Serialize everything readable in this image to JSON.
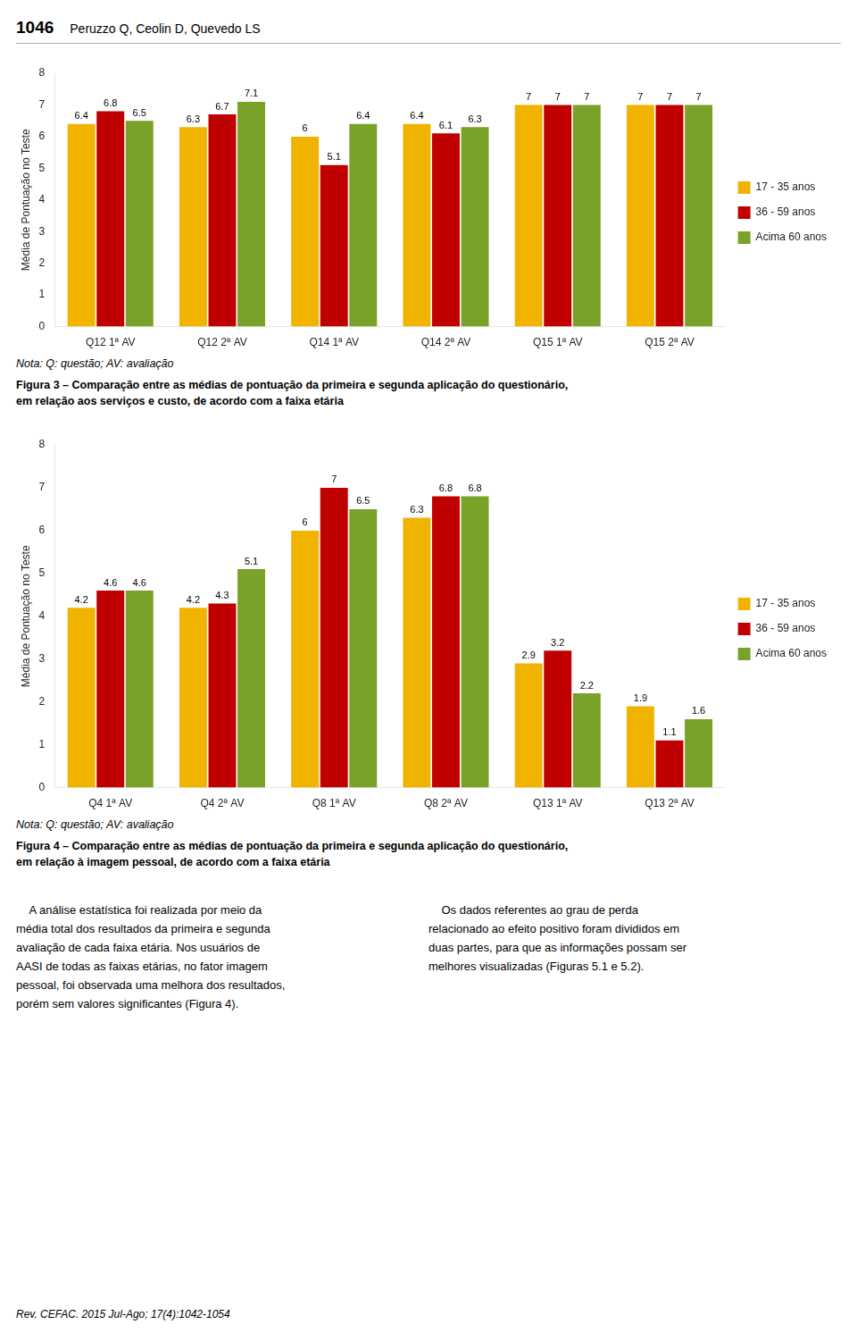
{
  "header": [
    "1046",
    "Peruzzo Q, Ceolin D, Quevedo LS"
  ],
  "chart_data": [
    {
      "type": "bar",
      "categories": [
        "Q12 1ª AV",
        "Q12 2ª AV",
        "Q14 1ª AV",
        "Q14 2ª AV",
        "Q15 1ª AV",
        "Q15 2ª AV"
      ],
      "series": [
        {
          "name": "17 - 35 anos",
          "color": "#F0B400",
          "values": [
            6.4,
            6.3,
            6.0,
            6.4,
            7.0,
            7.0
          ]
        },
        {
          "name": "36 - 59 anos",
          "color": "#C00000",
          "values": [
            6.8,
            6.7,
            5.1,
            6.1,
            7.0,
            7.0
          ]
        },
        {
          "name": "Acima 60 anos",
          "color": "#78A228",
          "values": [
            6.5,
            7.1,
            6.4,
            6.3,
            7.0,
            7.0
          ]
        }
      ],
      "ylabel": "Média de Pontuação no Teste",
      "ylim": [
        0,
        8
      ],
      "yticks": [
        0,
        1,
        2,
        3,
        4,
        5,
        6,
        7,
        8
      ],
      "grid": false,
      "legend": "right",
      "data_labels": true,
      "annotations": [
        "Nota: Q: questão; AV: avaliação",
        "Figura 3 – Comparação entre as médias de pontuação da primeira e segunda aplicação do questionário,",
        "em relação aos serviços e custo, de acordo com a faixa etária"
      ]
    },
    {
      "type": "bar",
      "categories": [
        "Q4 1ª AV",
        "Q4 2ª AV",
        "Q8 1ª AV",
        "Q8 2ª AV",
        "Q13 1ª AV",
        "Q13 2ª AV"
      ],
      "series": [
        {
          "name": "17 - 35 anos",
          "color": "#F0B400",
          "values": [
            4.2,
            4.2,
            6.0,
            6.3,
            2.9,
            1.9
          ]
        },
        {
          "name": "36 - 59 anos",
          "color": "#C00000",
          "values": [
            4.6,
            4.3,
            7.0,
            6.8,
            3.2,
            1.1
          ]
        },
        {
          "name": "Acima 60 anos",
          "color": "#78A228",
          "values": [
            4.6,
            5.1,
            6.5,
            6.8,
            2.2,
            1.6
          ]
        }
      ],
      "ylabel": "Média de Pontuação no Teste",
      "ylim": [
        0,
        8
      ],
      "yticks": [
        0,
        1,
        2,
        3,
        4,
        5,
        6,
        7,
        8
      ],
      "grid": false,
      "legend": "right",
      "data_labels": true,
      "annotations": [
        "Nota: Q: questão; AV: avaliação",
        "Figura 4 – Comparação entre as médias de pontuação da primeira e segunda aplicação do questionário,",
        "em relação à imagem pessoal, de acordo com a faixa etária"
      ]
    }
  ],
  "text": [
    "    A análise estatística foi realizada por meio da\nmédia total dos resultados da primeira e segunda\navaliação de cada faixa etária. Nos usuários de\nAASI de todas as faixas etárias, no fator imagem\npessoal, foi observada uma melhora dos resultados,\nporém sem valores significantes (Figura 4).",
    "    Os dados referentes ao grau de perda\nrelacionado ao efeito positivo foram divididos em\nduas partes, para que as informações possam ser\nmelhores visualizadas (Figuras 5.1 e 5.2)."
  ],
  "footer": "Rev. CEFAC. 2015 Jul-Ago; 17(4):1042-1054"
}
